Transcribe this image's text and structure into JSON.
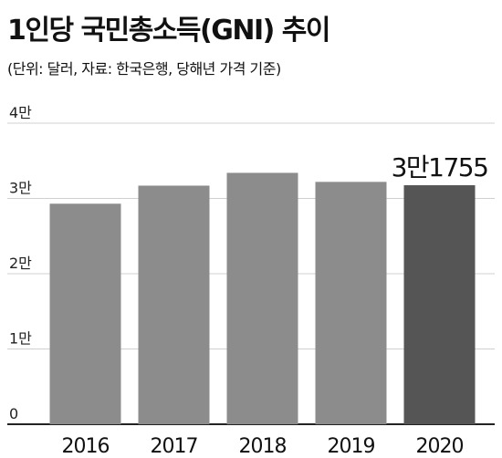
{
  "header": {
    "title": "1인당 국민총소득(GNI) 추이",
    "subtitle": "(단위: 달러, 자료: 한국은행, 당해년 가격 기준)"
  },
  "chart_data": {
    "type": "bar",
    "title": "1인당 국민총소득(GNI) 추이",
    "subtitle": "(단위: 달러, 자료: 한국은행, 당해년 가격 기준)",
    "categories": [
      "2016",
      "2017",
      "2018",
      "2019",
      "2020"
    ],
    "values": [
      29300,
      31700,
      33400,
      32200,
      31755
    ],
    "ylim": [
      0,
      40000
    ],
    "yticks": [
      {
        "value": 0,
        "label": "0"
      },
      {
        "value": 10000,
        "label": "1만"
      },
      {
        "value": 20000,
        "label": "2만"
      },
      {
        "value": 30000,
        "label": "3만"
      },
      {
        "value": 40000,
        "label": "4만"
      }
    ],
    "grid": true,
    "colors": {
      "bar": "#8c8c8c",
      "highlight": "#555555",
      "grid": "#d0d0d0",
      "axis": "#222222"
    },
    "highlight_index": 4,
    "annotations": [
      {
        "category": "2020",
        "text": "3만1755"
      }
    ]
  }
}
